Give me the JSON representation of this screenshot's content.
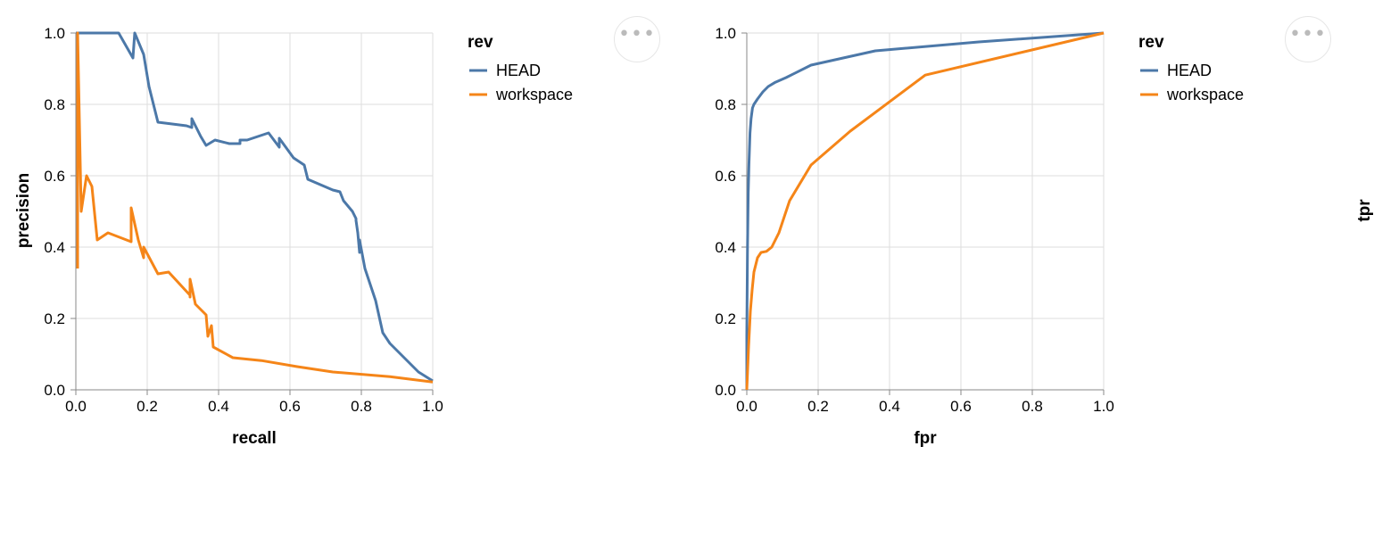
{
  "chart_data": [
    {
      "type": "line",
      "xlabel": "recall",
      "ylabel": "precision",
      "xlim": [
        0,
        1
      ],
      "ylim": [
        0,
        1
      ],
      "x_ticks": [
        "0.0",
        "0.2",
        "0.4",
        "0.6",
        "0.8",
        "1.0"
      ],
      "y_ticks": [
        "0.0",
        "0.2",
        "0.4",
        "0.6",
        "0.8",
        "1.0"
      ],
      "grid": true,
      "legend": {
        "title": "rev",
        "position": "right"
      },
      "series": [
        {
          "name": "HEAD",
          "color": "#4c78a8",
          "points": [
            [
              0,
              1.0
            ],
            [
              0.04,
              1.0
            ],
            [
              0.08,
              1.0
            ],
            [
              0.12,
              1.0
            ],
            [
              0.16,
              0.93
            ],
            [
              0.165,
              1.0
            ],
            [
              0.19,
              0.94
            ],
            [
              0.205,
              0.85
            ],
            [
              0.23,
              0.75
            ],
            [
              0.27,
              0.745
            ],
            [
              0.31,
              0.74
            ],
            [
              0.325,
              0.735
            ],
            [
              0.325,
              0.76
            ],
            [
              0.35,
              0.71
            ],
            [
              0.365,
              0.685
            ],
            [
              0.39,
              0.7
            ],
            [
              0.43,
              0.69
            ],
            [
              0.46,
              0.69
            ],
            [
              0.46,
              0.7
            ],
            [
              0.48,
              0.7
            ],
            [
              0.54,
              0.72
            ],
            [
              0.57,
              0.68
            ],
            [
              0.57,
              0.705
            ],
            [
              0.61,
              0.65
            ],
            [
              0.64,
              0.63
            ],
            [
              0.65,
              0.59
            ],
            [
              0.72,
              0.56
            ],
            [
              0.74,
              0.555
            ],
            [
              0.75,
              0.53
            ],
            [
              0.775,
              0.5
            ],
            [
              0.785,
              0.48
            ],
            [
              0.785,
              0.475
            ],
            [
              0.79,
              0.44
            ],
            [
              0.795,
              0.385
            ],
            [
              0.795,
              0.42
            ],
            [
              0.81,
              0.34
            ],
            [
              0.84,
              0.25
            ],
            [
              0.86,
              0.16
            ],
            [
              0.88,
              0.13
            ],
            [
              0.91,
              0.1
            ],
            [
              0.96,
              0.05
            ],
            [
              1.0,
              0.025
            ]
          ]
        },
        {
          "name": "workspace",
          "color": "#f58518",
          "points": [
            [
              0.005,
              0.34
            ],
            [
              0.005,
              1.0
            ],
            [
              0.015,
              0.5
            ],
            [
              0.03,
              0.6
            ],
            [
              0.045,
              0.57
            ],
            [
              0.06,
              0.42
            ],
            [
              0.09,
              0.44
            ],
            [
              0.155,
              0.415
            ],
            [
              0.155,
              0.51
            ],
            [
              0.175,
              0.42
            ],
            [
              0.19,
              0.37
            ],
            [
              0.19,
              0.4
            ],
            [
              0.23,
              0.325
            ],
            [
              0.26,
              0.33
            ],
            [
              0.32,
              0.265
            ],
            [
              0.32,
              0.26
            ],
            [
              0.32,
              0.31
            ],
            [
              0.335,
              0.24
            ],
            [
              0.365,
              0.21
            ],
            [
              0.37,
              0.15
            ],
            [
              0.38,
              0.18
            ],
            [
              0.385,
              0.12
            ],
            [
              0.44,
              0.09
            ],
            [
              0.52,
              0.082
            ],
            [
              0.62,
              0.065
            ],
            [
              0.72,
              0.05
            ],
            [
              0.88,
              0.037
            ],
            [
              1.0,
              0.022
            ]
          ]
        }
      ]
    },
    {
      "type": "line",
      "xlabel": "fpr",
      "ylabel": "tpr",
      "xlim": [
        0,
        1
      ],
      "ylim": [
        0,
        1
      ],
      "x_ticks": [
        "0.0",
        "0.2",
        "0.4",
        "0.6",
        "0.8",
        "1.0"
      ],
      "y_ticks": [
        "0.0",
        "0.2",
        "0.4",
        "0.6",
        "0.8",
        "1.0"
      ],
      "grid": true,
      "legend": {
        "title": "rev",
        "position": "right"
      },
      "series": [
        {
          "name": "HEAD",
          "color": "#4c78a8",
          "points": [
            [
              0,
              0
            ],
            [
              0,
              0.15
            ],
            [
              0.002,
              0.4
            ],
            [
              0.004,
              0.55
            ],
            [
              0.006,
              0.63
            ],
            [
              0.009,
              0.72
            ],
            [
              0.012,
              0.76
            ],
            [
              0.016,
              0.79
            ],
            [
              0.02,
              0.8
            ],
            [
              0.03,
              0.815
            ],
            [
              0.045,
              0.835
            ],
            [
              0.06,
              0.85
            ],
            [
              0.08,
              0.862
            ],
            [
              0.11,
              0.875
            ],
            [
              0.18,
              0.91
            ],
            [
              0.36,
              0.95
            ],
            [
              0.65,
              0.975
            ],
            [
              1.0,
              1.0
            ]
          ]
        },
        {
          "name": "workspace",
          "color": "#f58518",
          "points": [
            [
              0,
              0
            ],
            [
              0.005,
              0.12
            ],
            [
              0.01,
              0.22
            ],
            [
              0.015,
              0.28
            ],
            [
              0.02,
              0.33
            ],
            [
              0.025,
              0.35
            ],
            [
              0.03,
              0.37
            ],
            [
              0.04,
              0.385
            ],
            [
              0.055,
              0.388
            ],
            [
              0.07,
              0.4
            ],
            [
              0.09,
              0.44
            ],
            [
              0.12,
              0.53
            ],
            [
              0.18,
              0.63
            ],
            [
              0.29,
              0.725
            ],
            [
              0.5,
              0.882
            ],
            [
              1.0,
              1.0
            ]
          ]
        }
      ]
    }
  ]
}
